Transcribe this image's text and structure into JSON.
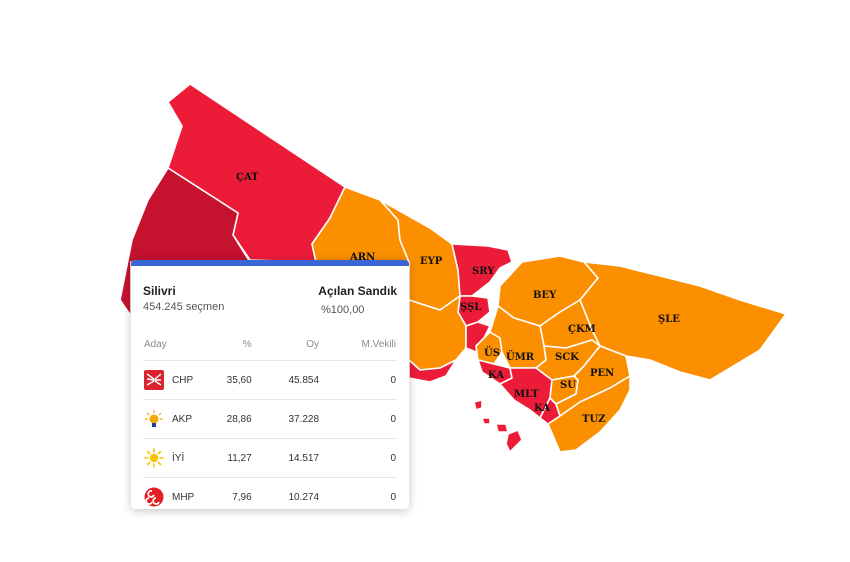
{
  "colors": {
    "chp": "#ec1c39",
    "chp_dark": "#c4122f",
    "akp": "#fb8f00",
    "accent": "#3b66d6"
  },
  "map": {
    "district_labels": [
      "ÇAT",
      "ARN",
      "EYP",
      "SRY",
      "BEY",
      "ŞLE",
      "ŞŞL",
      "ÇKM",
      "ÜS",
      "ÜMR",
      "SCK",
      "KA",
      "MLT",
      "SU",
      "PEN",
      "KA",
      "TUZ"
    ]
  },
  "card": {
    "district_name": "Silivri",
    "voters": "454.245 seçmen",
    "opened_title": "Açılan Sandık",
    "opened_value": "%100,00",
    "columns": [
      "Aday",
      "%",
      "Oy",
      "M.Vekili"
    ],
    "rows": [
      {
        "party": "CHP",
        "icon": "chp-six-arrows-icon",
        "percent": "35,60",
        "votes": "45.854",
        "deputies": "0"
      },
      {
        "party": "AKP",
        "icon": "akp-light-bulb-icon",
        "percent": "28,86",
        "votes": "37.228",
        "deputies": "0"
      },
      {
        "party": "İYİ",
        "icon": "iyi-sun-icon",
        "percent": "11,27",
        "votes": "14.517",
        "deputies": "0"
      },
      {
        "party": "MHP",
        "icon": "mhp-three-crescents-icon",
        "percent": "7,96",
        "votes": "10.274",
        "deputies": "0"
      }
    ]
  }
}
